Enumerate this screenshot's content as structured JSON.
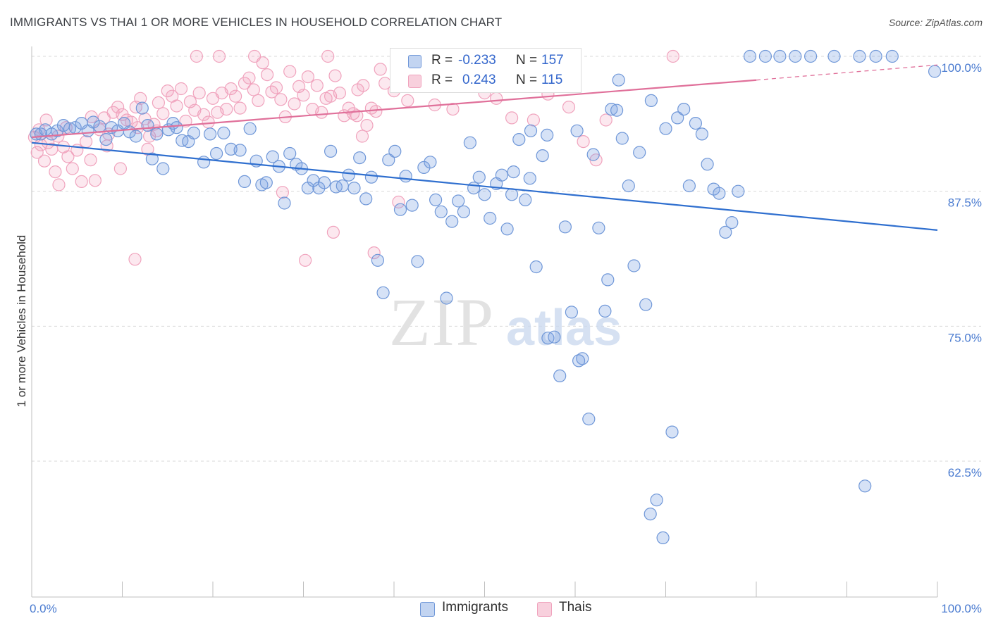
{
  "header": {
    "title": "IMMIGRANTS VS THAI 1 OR MORE VEHICLES IN HOUSEHOLD CORRELATION CHART",
    "source": "Source: ZipAtlas.com"
  },
  "watermark": {
    "zip": "ZIP",
    "atlas": "atlas"
  },
  "legend_top": {
    "rows": [
      {
        "r_label": "R =",
        "r_value": "-0.233",
        "n_label": "N =",
        "n_value": "157"
      },
      {
        "r_label": "R =",
        "r_value": "0.243",
        "n_label": "N =",
        "n_value": "115"
      }
    ]
  },
  "legend_bottom": {
    "items": [
      {
        "label": "Immigrants"
      },
      {
        "label": "Thais"
      }
    ]
  },
  "colors": {
    "immigrants_fill": "rgba(120,160,225,0.30)",
    "immigrants_stroke": "#6f97d8",
    "immigrants_line": "#2f6fcf",
    "thais_fill": "rgba(240,150,180,0.22)",
    "thais_stroke": "#f0a3bd",
    "thais_line": "#e0709a",
    "tick_text": "#4a7bd0",
    "grid": "#d9d9d9"
  },
  "chart_data": {
    "type": "scatter",
    "title": "IMMIGRANTS VS THAI 1 OR MORE VEHICLES IN HOUSEHOLD CORRELATION CHART",
    "xlabel": "",
    "ylabel": "1 or more Vehicles in Household",
    "xlim": [
      0,
      100
    ],
    "ylim": [
      50.5,
      101.5
    ],
    "x_tick_labels": [
      "0.0%",
      "100.0%"
    ],
    "y_ticks": [
      100,
      87.5,
      75,
      62.5
    ],
    "y_tick_labels": [
      "100.0%",
      "87.5%",
      "75.0%",
      "62.5%"
    ],
    "grid": true,
    "legend_position": "top-center",
    "series": [
      {
        "name": "Immigrants",
        "r": -0.233,
        "n": 157,
        "trend": {
          "x": [
            0,
            100
          ],
          "y": [
            92.0,
            83.9
          ],
          "dashed_from": null
        },
        "points": [
          [
            0.5,
            92.8
          ],
          [
            1.0,
            92.8
          ],
          [
            1.5,
            93.2
          ],
          [
            2.2,
            92.8
          ],
          [
            2.8,
            93.1
          ],
          [
            3.5,
            93.6
          ],
          [
            4.2,
            93.3
          ],
          [
            4.8,
            93.4
          ],
          [
            5.5,
            93.8
          ],
          [
            6.2,
            93.1
          ],
          [
            6.8,
            93.9
          ],
          [
            7.5,
            93.5
          ],
          [
            8.2,
            92.3
          ],
          [
            8.8,
            93.4
          ],
          [
            9.5,
            93.1
          ],
          [
            10.2,
            93.8
          ],
          [
            10.8,
            93.0
          ],
          [
            11.5,
            92.6
          ],
          [
            12.2,
            95.2
          ],
          [
            12.8,
            93.6
          ],
          [
            13.3,
            90.5
          ],
          [
            13.8,
            92.8
          ],
          [
            14.5,
            89.6
          ],
          [
            15.1,
            93.2
          ],
          [
            15.6,
            93.8
          ],
          [
            16.0,
            93.4
          ],
          [
            16.6,
            92.2
          ],
          [
            17.3,
            92.1
          ],
          [
            17.9,
            92.9
          ],
          [
            19.0,
            90.2
          ],
          [
            19.7,
            92.8
          ],
          [
            20.4,
            91.0
          ],
          [
            21.2,
            92.9
          ],
          [
            22.0,
            91.4
          ],
          [
            23.0,
            91.3
          ],
          [
            23.5,
            88.4
          ],
          [
            24.1,
            93.3
          ],
          [
            24.8,
            90.3
          ],
          [
            25.4,
            88.1
          ],
          [
            25.9,
            88.3
          ],
          [
            26.6,
            90.7
          ],
          [
            27.3,
            89.8
          ],
          [
            27.9,
            86.4
          ],
          [
            28.5,
            91.0
          ],
          [
            29.2,
            90.0
          ],
          [
            29.8,
            89.6
          ],
          [
            30.5,
            87.8
          ],
          [
            31.1,
            88.5
          ],
          [
            31.7,
            87.8
          ],
          [
            32.3,
            88.3
          ],
          [
            33.0,
            91.2
          ],
          [
            33.6,
            87.9
          ],
          [
            34.3,
            88.0
          ],
          [
            35.0,
            89.0
          ],
          [
            35.6,
            87.8
          ],
          [
            36.2,
            90.6
          ],
          [
            36.9,
            86.8
          ],
          [
            37.5,
            88.8
          ],
          [
            38.2,
            81.1
          ],
          [
            38.8,
            78.1
          ],
          [
            39.4,
            90.4
          ],
          [
            40.1,
            91.2
          ],
          [
            40.7,
            85.8
          ],
          [
            41.3,
            88.9
          ],
          [
            42.0,
            86.2
          ],
          [
            42.6,
            81.0
          ],
          [
            43.3,
            89.7
          ],
          [
            44.0,
            90.2
          ],
          [
            44.6,
            86.7
          ],
          [
            45.2,
            85.6
          ],
          [
            45.8,
            77.6
          ],
          [
            46.4,
            84.7
          ],
          [
            47.1,
            86.6
          ],
          [
            47.7,
            85.6
          ],
          [
            48.4,
            92.0
          ],
          [
            48.8,
            87.8
          ],
          [
            49.4,
            88.8
          ],
          [
            50.0,
            87.2
          ],
          [
            50.6,
            85.0
          ],
          [
            51.3,
            88.2
          ],
          [
            51.9,
            89.0
          ],
          [
            52.5,
            84.0
          ],
          [
            53.2,
            89.3
          ],
          [
            53.8,
            92.3
          ],
          [
            54.5,
            86.7
          ],
          [
            55.1,
            93.1
          ],
          [
            55.7,
            80.5
          ],
          [
            56.4,
            90.8
          ],
          [
            57.0,
            73.9
          ],
          [
            57.7,
            74.0
          ],
          [
            58.3,
            70.4
          ],
          [
            58.9,
            84.2
          ],
          [
            59.6,
            76.3
          ],
          [
            60.2,
            93.1
          ],
          [
            60.8,
            72.0
          ],
          [
            61.5,
            66.4
          ],
          [
            62.0,
            90.9
          ],
          [
            62.6,
            84.1
          ],
          [
            63.3,
            76.4
          ],
          [
            64.0,
            95.1
          ],
          [
            64.6,
            95.0
          ],
          [
            65.2,
            92.4
          ],
          [
            65.9,
            88.0
          ],
          [
            66.5,
            80.6
          ],
          [
            67.1,
            91.1
          ],
          [
            67.8,
            77.0
          ],
          [
            68.4,
            95.9
          ],
          [
            69.0,
            58.9
          ],
          [
            70.0,
            93.3
          ],
          [
            70.7,
            65.2
          ],
          [
            71.3,
            94.3
          ],
          [
            72.0,
            95.1
          ],
          [
            72.6,
            88.0
          ],
          [
            73.3,
            93.8
          ],
          [
            74.0,
            92.8
          ],
          [
            74.6,
            90.0
          ],
          [
            75.3,
            87.7
          ],
          [
            75.9,
            87.3
          ],
          [
            76.6,
            83.7
          ],
          [
            77.3,
            84.6
          ],
          [
            78.0,
            87.5
          ],
          [
            79.3,
            100.0
          ],
          [
            81.0,
            100.0
          ],
          [
            82.6,
            100.0
          ],
          [
            84.3,
            100.0
          ],
          [
            86.0,
            100.0
          ],
          [
            88.6,
            100.0
          ],
          [
            91.4,
            100.0
          ],
          [
            93.2,
            100.0
          ],
          [
            95.0,
            100.0
          ],
          [
            99.7,
            98.6
          ],
          [
            92.0,
            60.2
          ],
          [
            69.7,
            55.4
          ],
          [
            68.3,
            57.6
          ],
          [
            64.8,
            97.8
          ],
          [
            63.6,
            79.3
          ],
          [
            60.4,
            71.8
          ],
          [
            56.9,
            92.7
          ],
          [
            55.0,
            88.7
          ],
          [
            53.0,
            87.2
          ]
        ]
      },
      {
        "name": "Thais",
        "r": 0.243,
        "n": 115,
        "trend": {
          "x": [
            0,
            80,
            100
          ],
          "y": [
            92.5,
            97.8,
            99.2
          ],
          "dashed_from": 80
        },
        "points": [
          [
            0.3,
            92.5
          ],
          [
            0.6,
            91.1
          ],
          [
            1.0,
            91.8
          ],
          [
            1.4,
            90.3
          ],
          [
            1.8,
            92.0
          ],
          [
            2.2,
            91.4
          ],
          [
            2.6,
            89.3
          ],
          [
            3.0,
            88.1
          ],
          [
            3.5,
            91.6
          ],
          [
            4.0,
            90.7
          ],
          [
            4.5,
            89.6
          ],
          [
            5.0,
            91.3
          ],
          [
            5.5,
            88.4
          ],
          [
            6.0,
            92.1
          ],
          [
            6.5,
            90.4
          ],
          [
            7.0,
            88.5
          ],
          [
            7.5,
            93.2
          ],
          [
            8.0,
            94.3
          ],
          [
            8.5,
            92.8
          ],
          [
            9.0,
            94.8
          ],
          [
            9.5,
            95.3
          ],
          [
            10.0,
            94.6
          ],
          [
            10.5,
            94.1
          ],
          [
            11.0,
            93.9
          ],
          [
            11.5,
            95.3
          ],
          [
            12.0,
            96.1
          ],
          [
            12.5,
            94.2
          ],
          [
            13.0,
            92.6
          ],
          [
            13.5,
            93.7
          ],
          [
            14.0,
            95.7
          ],
          [
            14.5,
            94.7
          ],
          [
            15.0,
            96.8
          ],
          [
            15.5,
            96.3
          ],
          [
            16.0,
            95.4
          ],
          [
            16.5,
            97.0
          ],
          [
            17.0,
            94.0
          ],
          [
            17.5,
            95.8
          ],
          [
            18.0,
            95.0
          ],
          [
            18.5,
            96.6
          ],
          [
            19.0,
            94.6
          ],
          [
            19.5,
            93.9
          ],
          [
            20.0,
            96.1
          ],
          [
            20.5,
            94.8
          ],
          [
            21.0,
            96.6
          ],
          [
            21.5,
            95.1
          ],
          [
            22.0,
            97.0
          ],
          [
            22.5,
            96.3
          ],
          [
            23.0,
            95.2
          ],
          [
            23.5,
            97.5
          ],
          [
            24.0,
            98.0
          ],
          [
            24.5,
            96.9
          ],
          [
            25.0,
            95.9
          ],
          [
            25.5,
            99.4
          ],
          [
            26.0,
            98.3
          ],
          [
            26.5,
            96.7
          ],
          [
            27.0,
            97.1
          ],
          [
            27.5,
            96.0
          ],
          [
            28.0,
            94.4
          ],
          [
            28.5,
            98.6
          ],
          [
            29.0,
            95.6
          ],
          [
            29.5,
            97.2
          ],
          [
            30.0,
            96.4
          ],
          [
            30.5,
            98.1
          ],
          [
            31.0,
            95.1
          ],
          [
            31.5,
            97.3
          ],
          [
            32.0,
            94.8
          ],
          [
            32.5,
            96.1
          ],
          [
            33.0,
            96.3
          ],
          [
            33.5,
            98.2
          ],
          [
            34.0,
            96.6
          ],
          [
            34.5,
            94.5
          ],
          [
            35.0,
            95.2
          ],
          [
            35.5,
            94.7
          ],
          [
            36.0,
            96.9
          ],
          [
            36.5,
            92.6
          ],
          [
            37.0,
            93.6
          ],
          [
            37.5,
            95.2
          ],
          [
            38.0,
            94.9
          ],
          [
            38.5,
            98.8
          ],
          [
            39.0,
            97.5
          ],
          [
            40.0,
            96.8
          ],
          [
            41.5,
            95.9
          ],
          [
            43.0,
            97.5
          ],
          [
            44.5,
            95.5
          ],
          [
            46.5,
            95.1
          ],
          [
            48.0,
            97.2
          ],
          [
            50.0,
            96.6
          ],
          [
            51.3,
            96.1
          ],
          [
            53.0,
            94.3
          ],
          [
            55.4,
            94.1
          ],
          [
            57.0,
            96.5
          ],
          [
            59.3,
            95.3
          ],
          [
            60.9,
            92.1
          ],
          [
            62.3,
            90.4
          ],
          [
            63.4,
            94.1
          ],
          [
            0.8,
            93.2
          ],
          [
            1.6,
            94.1
          ],
          [
            2.9,
            92.6
          ],
          [
            3.8,
            93.4
          ],
          [
            6.6,
            94.4
          ],
          [
            8.3,
            91.7
          ],
          [
            9.8,
            89.6
          ],
          [
            11.7,
            93.4
          ],
          [
            12.8,
            91.4
          ],
          [
            13.8,
            93.1
          ],
          [
            18.2,
            100.0
          ],
          [
            20.7,
            100.0
          ],
          [
            24.6,
            100.0
          ],
          [
            30.2,
            81.1
          ],
          [
            32.7,
            100.0
          ],
          [
            27.7,
            87.4
          ],
          [
            33.3,
            83.7
          ],
          [
            35.9,
            94.5
          ],
          [
            36.6,
            97.3
          ],
          [
            37.8,
            81.8
          ],
          [
            40.5,
            86.5
          ],
          [
            42.2,
            100.0
          ],
          [
            46.0,
            100.0
          ],
          [
            11.4,
            81.2
          ],
          [
            70.8,
            100.0
          ]
        ]
      }
    ]
  }
}
